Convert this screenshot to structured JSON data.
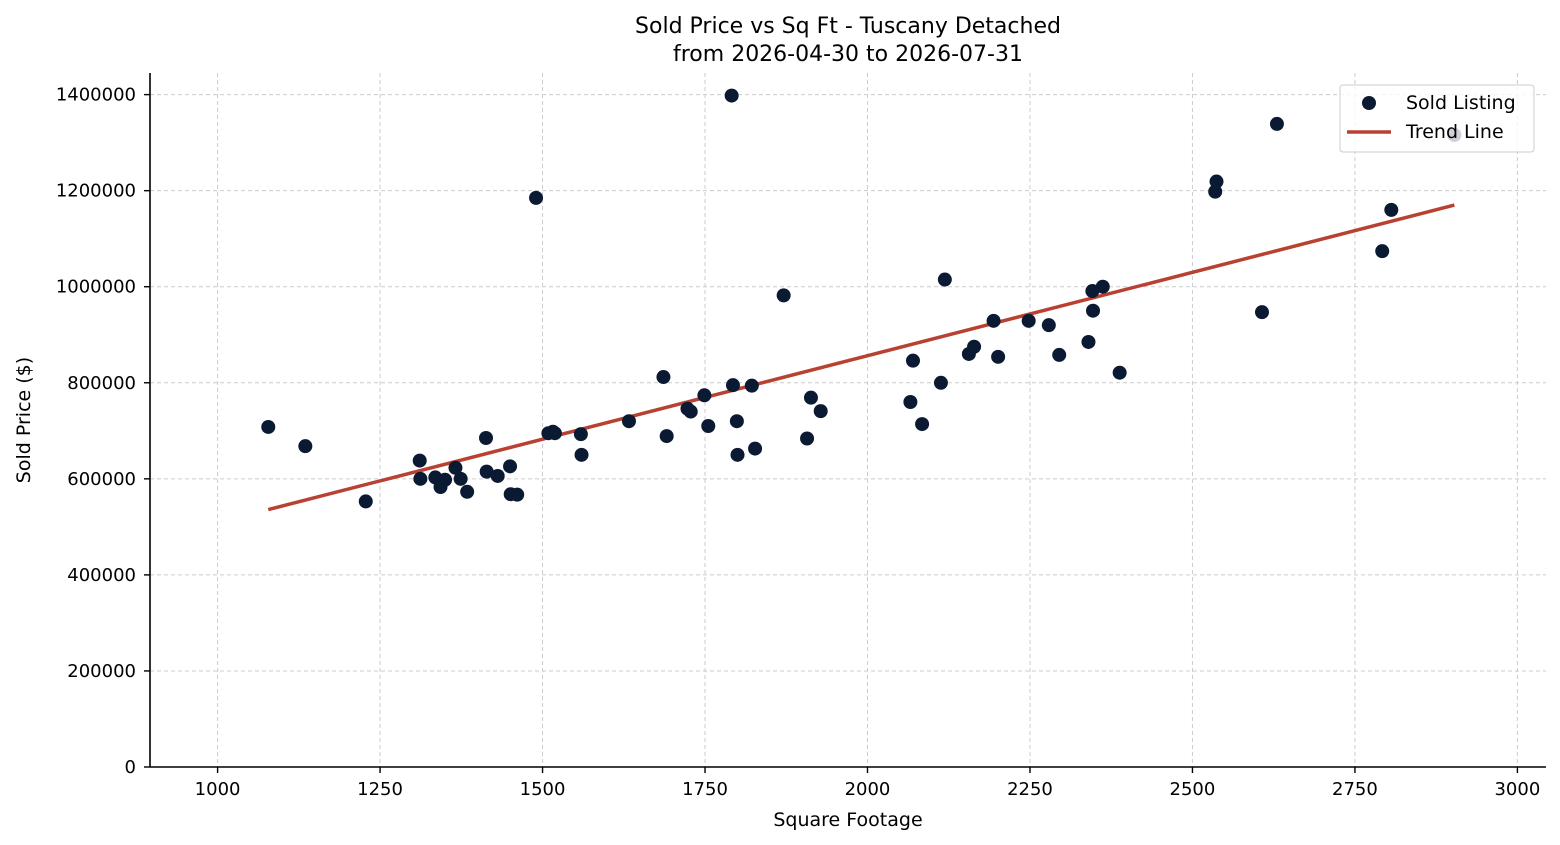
{
  "chart_data": {
    "type": "scatter",
    "title_line1": "Sold Price vs Sq Ft - Tuscany Detached",
    "title_line2": "from 2026-04-30 to 2026-07-31",
    "xlabel": "Square Footage",
    "ylabel": "Sold Price ($)",
    "xlim": [
      896,
      3044
    ],
    "ylim": [
      0,
      1445000
    ],
    "xticks": [
      1000,
      1250,
      1500,
      1750,
      2000,
      2250,
      2500,
      2750,
      3000
    ],
    "yticks": [
      0,
      200000,
      400000,
      600000,
      800000,
      1000000,
      1200000,
      1400000
    ],
    "grid": true,
    "legend_position": "top-right",
    "colors": {
      "points": "#0b1a33",
      "trend": "#b94132",
      "grid": "#cccccc"
    },
    "series": [
      {
        "name": "Sold Listing",
        "kind": "scatter",
        "points": [
          [
            1078,
            708000
          ],
          [
            1135,
            668000
          ],
          [
            1228,
            553000
          ],
          [
            1311,
            638000
          ],
          [
            1312,
            600000
          ],
          [
            1335,
            603000
          ],
          [
            1343,
            583000
          ],
          [
            1350,
            598000
          ],
          [
            1366,
            623000
          ],
          [
            1374,
            600000
          ],
          [
            1384,
            573000
          ],
          [
            1413,
            685000
          ],
          [
            1414,
            615000
          ],
          [
            1431,
            606000
          ],
          [
            1450,
            626000
          ],
          [
            1451,
            568000
          ],
          [
            1461,
            567000
          ],
          [
            1490,
            1185000
          ],
          [
            1509,
            695000
          ],
          [
            1516,
            698000
          ],
          [
            1519,
            695000
          ],
          [
            1559,
            693000
          ],
          [
            1560,
            650000
          ],
          [
            1633,
            720000
          ],
          [
            1686,
            812000
          ],
          [
            1691,
            689000
          ],
          [
            1723,
            746000
          ],
          [
            1728,
            740000
          ],
          [
            1749,
            774000
          ],
          [
            1755,
            710000
          ],
          [
            1791,
            1398000
          ],
          [
            1793,
            795000
          ],
          [
            1799,
            720000
          ],
          [
            1800,
            650000
          ],
          [
            1822,
            794000
          ],
          [
            1827,
            663000
          ],
          [
            1871,
            982000
          ],
          [
            1907,
            684000
          ],
          [
            1913,
            769000
          ],
          [
            1928,
            741000
          ],
          [
            2066,
            760000
          ],
          [
            2070,
            846000
          ],
          [
            2084,
            714000
          ],
          [
            2113,
            800000
          ],
          [
            2119,
            1015000
          ],
          [
            2156,
            860000
          ],
          [
            2164,
            875000
          ],
          [
            2194,
            929000
          ],
          [
            2201,
            854000
          ],
          [
            2248,
            929000
          ],
          [
            2279,
            920000
          ],
          [
            2295,
            858000
          ],
          [
            2340,
            885000
          ],
          [
            2346,
            991000
          ],
          [
            2347,
            950000
          ],
          [
            2362,
            1000000
          ],
          [
            2388,
            821000
          ],
          [
            2535,
            1198000
          ],
          [
            2537,
            1219000
          ],
          [
            2607,
            947000
          ],
          [
            2630,
            1339000
          ],
          [
            2792,
            1074000
          ],
          [
            2806,
            1160000
          ],
          [
            2903,
            1316000
          ]
        ]
      },
      {
        "name": "Trend Line",
        "kind": "line",
        "points": [
          [
            1078,
            536000
          ],
          [
            2903,
            1170000
          ]
        ]
      }
    ]
  }
}
